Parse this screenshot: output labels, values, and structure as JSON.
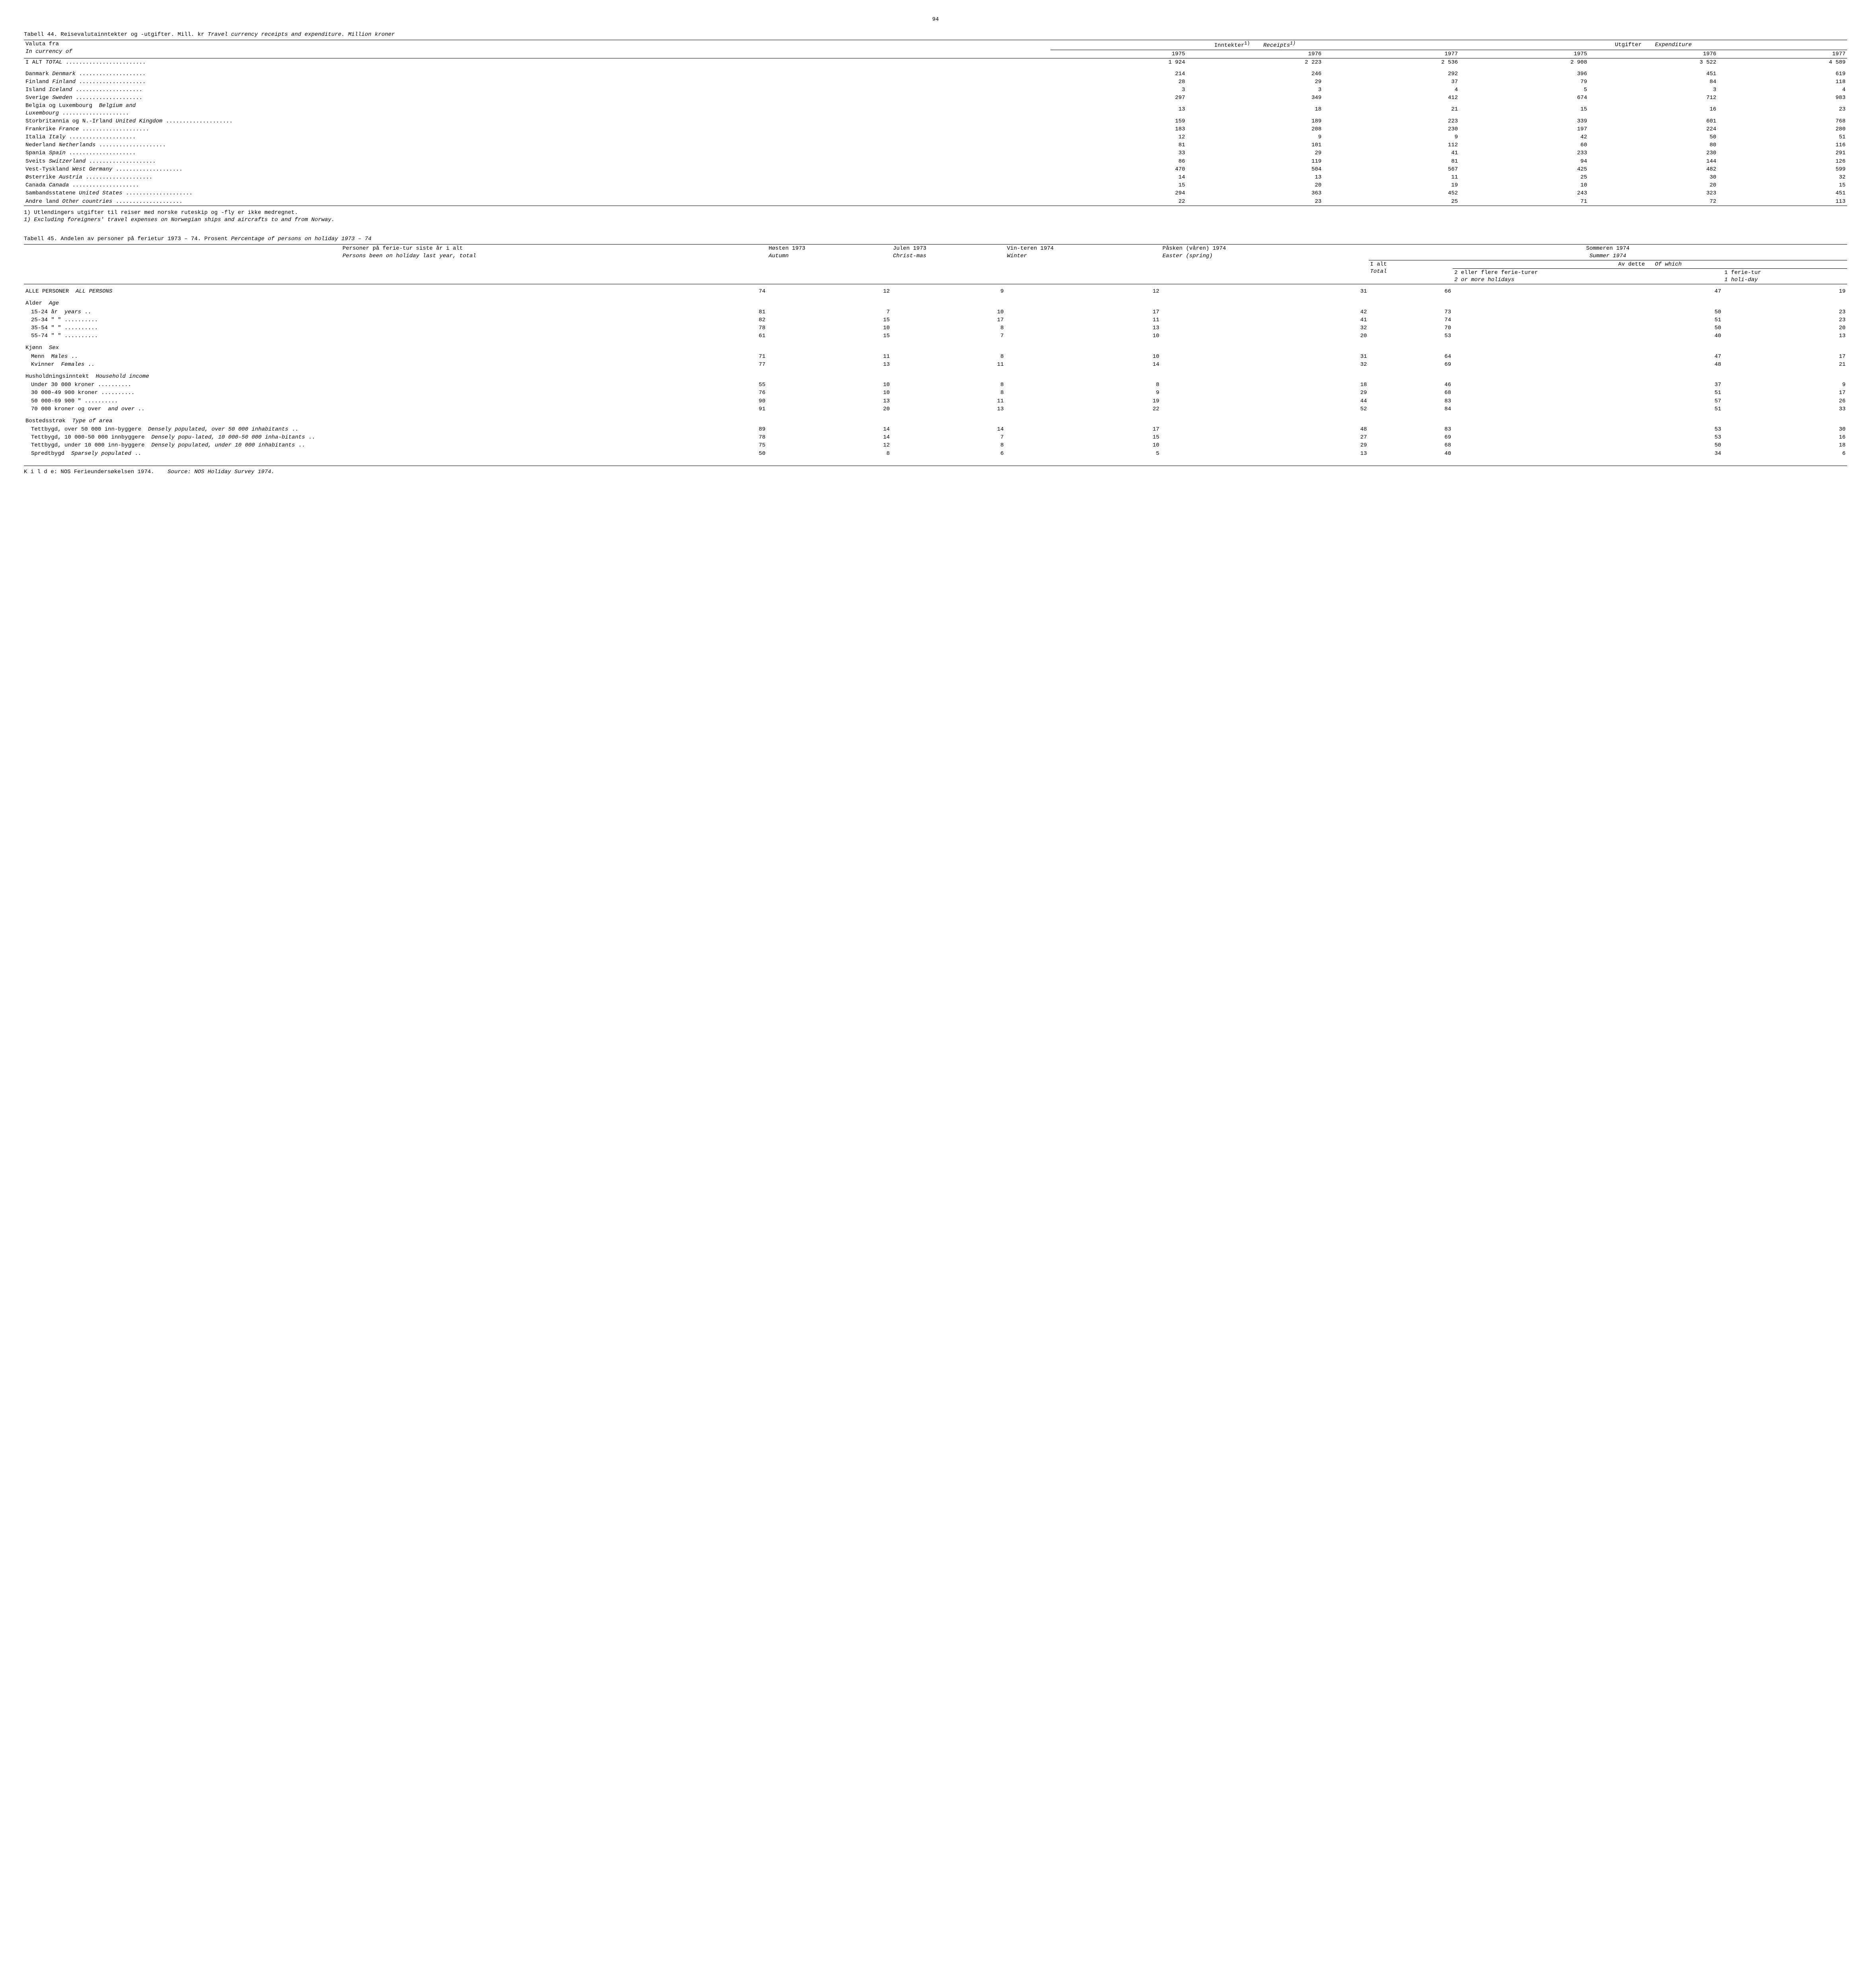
{
  "pageNumber": "94",
  "table44": {
    "titlePrefix": "Tabell 44.",
    "titleNo": "Reisevalutainntekter og -utgifter.  Mill. kr",
    "titleEn": "Travel currency receipts and expenditure. Million kroner",
    "headers": {
      "currencyFromNo": "Valuta fra",
      "currencyFromEn": "In currency of",
      "receiptsNo": "Inntekter",
      "receiptsSup": "1)",
      "receiptsEn": "Receipts",
      "receiptsEnSup": "1)",
      "expenditureNo": "Utgifter",
      "expenditureEn": "Expenditure",
      "y1975": "1975",
      "y1976": "1976",
      "y1977": "1977"
    },
    "rows": [
      {
        "labelNo": "I ALT",
        "labelEn": "TOTAL",
        "r": [
          "1 924",
          "2 223",
          "2 536",
          "2 908",
          "3 522",
          "4 589"
        ]
      },
      {
        "labelNo": "Danmark",
        "labelEn": "Denmark",
        "r": [
          "214",
          "246",
          "292",
          "396",
          "451",
          "619"
        ]
      },
      {
        "labelNo": "Finland",
        "labelEn": "Finland",
        "r": [
          "28",
          "29",
          "37",
          "79",
          "84",
          "118"
        ]
      },
      {
        "labelNo": "Island",
        "labelEn": "Iceland",
        "r": [
          "3",
          "3",
          "4",
          "5",
          "3",
          "4"
        ]
      },
      {
        "labelNo": "Sverige",
        "labelEn": "Sweden",
        "r": [
          "297",
          "349",
          "412",
          "674",
          "712",
          "983"
        ]
      },
      {
        "labelNo": "Belgia og Luxembourg",
        "labelEn": "Belgium and Luxembourg",
        "wrap": true,
        "r": [
          "13",
          "18",
          "21",
          "15",
          "16",
          "23"
        ]
      },
      {
        "labelNo": "Storbritannia og N.-Irland",
        "labelEn": "United Kingdom",
        "r": [
          "159",
          "189",
          "223",
          "339",
          "601",
          "768"
        ]
      },
      {
        "labelNo": "Frankrike",
        "labelEn": "France",
        "r": [
          "183",
          "208",
          "230",
          "197",
          "224",
          "280"
        ]
      },
      {
        "labelNo": "Italia",
        "labelEn": "Italy",
        "r": [
          "12",
          "9",
          "9",
          "42",
          "50",
          "51"
        ]
      },
      {
        "labelNo": "Nederland",
        "labelEn": "Netherlands",
        "r": [
          "81",
          "101",
          "112",
          "60",
          "80",
          "116"
        ]
      },
      {
        "labelNo": "Spania",
        "labelEn": "Spain",
        "r": [
          "33",
          "29",
          "41",
          "233",
          "230",
          "291"
        ]
      },
      {
        "labelNo": "Sveits",
        "labelEn": "Switzerland",
        "r": [
          "86",
          "119",
          "81",
          "94",
          "144",
          "126"
        ]
      },
      {
        "labelNo": "Vest-Tyskland",
        "labelEn": "West Germany",
        "r": [
          "470",
          "504",
          "567",
          "425",
          "482",
          "599"
        ]
      },
      {
        "labelNo": "Østerrike",
        "labelEn": "Austria",
        "r": [
          "14",
          "13",
          "11",
          "25",
          "30",
          "32"
        ]
      },
      {
        "labelNo": "Canada",
        "labelEn": "Canada",
        "r": [
          "15",
          "20",
          "19",
          "10",
          "20",
          "15"
        ]
      },
      {
        "labelNo": "Sambandsstatene",
        "labelEn": "United States",
        "r": [
          "294",
          "363",
          "452",
          "243",
          "323",
          "451"
        ]
      },
      {
        "labelNo": "Andre land",
        "labelEn": "Other countries",
        "r": [
          "22",
          "23",
          "25",
          "71",
          "72",
          "113"
        ]
      }
    ],
    "footnoteNo": "1) Utlendingers utgifter til reiser med norske ruteskip og -fly er ikke medregnet.",
    "footnoteEn": "1) Excluding foreigners' travel expenses on Norwegian ships and aircrafts to and from Norway."
  },
  "table45": {
    "titlePrefix": "Tabell 45.",
    "titleNo": "Andelen av personer på ferietur 1973 – 74.  Prosent",
    "titleEn": "Percentage of persons on holiday 1973 – 74",
    "headers": {
      "col1a": "Personer på ferie-tur siste år i alt",
      "col1b": "Persons been on holiday last year, total",
      "col2a": "Høsten 1973",
      "col2b": "Autumn",
      "col3a": "Julen 1973",
      "col3b": "Christ-mas",
      "col4a": "Vin-teren 1974",
      "col4b": "Winter",
      "col5a": "Påsken (våren) 1974",
      "col5b": "Easter (spring)",
      "summerNo": "Sommeren 1974",
      "summerEn": "Summer 1974",
      "col6a": "I alt",
      "col6b": "Total",
      "col7top": "Av dette",
      "col7topEn": "Of which",
      "col7a": "2 eller flere ferie-turer",
      "col7b": "2 or more holidays",
      "col8a": "1 ferie-tur",
      "col8b": "1 holi-day"
    },
    "allPersons": {
      "labelNo": "ALLE PERSONER",
      "labelEn": "ALL PERSONS",
      "v": [
        "74",
        "12",
        "9",
        "12",
        "31",
        "66",
        "47",
        "19"
      ]
    },
    "groups": [
      {
        "headNo": "Alder",
        "headEn": "Age",
        "rows": [
          {
            "labelNo": "15-24 år",
            "labelEn": "years",
            "v": [
              "81",
              "7",
              "10",
              "17",
              "42",
              "73",
              "50",
              "23"
            ]
          },
          {
            "labelNo": "25-34  \"      \"",
            "labelEn": "",
            "v": [
              "82",
              "15",
              "17",
              "11",
              "41",
              "74",
              "51",
              "23"
            ]
          },
          {
            "labelNo": "35-54  \"      \"",
            "labelEn": "",
            "v": [
              "78",
              "10",
              "8",
              "13",
              "32",
              "70",
              "50",
              "20"
            ]
          },
          {
            "labelNo": "55-74  \"      \"",
            "labelEn": "",
            "v": [
              "61",
              "15",
              "7",
              "10",
              "20",
              "53",
              "40",
              "13"
            ]
          }
        ]
      },
      {
        "headNo": "Kjønn",
        "headEn": "Sex",
        "rows": [
          {
            "labelNo": "Menn",
            "labelEn": "Males",
            "v": [
              "71",
              "11",
              "8",
              "10",
              "31",
              "64",
              "47",
              "17"
            ]
          },
          {
            "labelNo": "Kvinner",
            "labelEn": "Females",
            "v": [
              "77",
              "13",
              "11",
              "14",
              "32",
              "69",
              "48",
              "21"
            ]
          }
        ]
      },
      {
        "headNo": "Husholdningsinntekt",
        "headEn": "Household income",
        "rows": [
          {
            "labelNo": "Under 30 000 kroner",
            "labelEn": "",
            "v": [
              "55",
              "10",
              "8",
              "8",
              "18",
              "46",
              "37",
              "9"
            ]
          },
          {
            "labelNo": "30 000-49 900 kroner",
            "labelEn": "",
            "v": [
              "76",
              "10",
              "8",
              "9",
              "29",
              "68",
              "51",
              "17"
            ]
          },
          {
            "labelNo": "50 000-69 900    \"",
            "labelEn": "",
            "v": [
              "90",
              "13",
              "11",
              "19",
              "44",
              "83",
              "57",
              "26"
            ]
          },
          {
            "labelNo": "70 000 kroner og over",
            "labelEn": "and over",
            "v": [
              "91",
              "20",
              "13",
              "22",
              "52",
              "84",
              "51",
              "33"
            ]
          }
        ]
      },
      {
        "headNo": "Bostedsstrøk",
        "headEn": "Type of area",
        "rows": [
          {
            "labelNo": "Tettbygd, over 50 000 inn-byggere",
            "labelEn": "Densely populated, over 50 000 inhabitants",
            "v": [
              "89",
              "14",
              "14",
              "17",
              "48",
              "83",
              "53",
              "30"
            ]
          },
          {
            "labelNo": "Tettbygd, 10 000-50 000 innbyggere",
            "labelEn": "Densely popu-lated, 10 000-50 000 inha-bitants",
            "v": [
              "78",
              "14",
              "7",
              "15",
              "27",
              "69",
              "53",
              "16"
            ]
          },
          {
            "labelNo": "Tettbygd, under 10 000 inn-byggere",
            "labelEn": "Densely populated, under 10 000 inhabitants",
            "v": [
              "75",
              "12",
              "8",
              "10",
              "29",
              "68",
              "50",
              "18"
            ]
          },
          {
            "labelNo": "Spredtbygd",
            "labelEn": "Sparsely populated",
            "v": [
              "50",
              "8",
              "6",
              "5",
              "13",
              "40",
              "34",
              "6"
            ]
          }
        ]
      }
    ],
    "sourceNo": "K i l d e: NOS Ferieundersøkelsen 1974.",
    "sourceEn": "Source:  NOS Holiday Survey 1974."
  }
}
